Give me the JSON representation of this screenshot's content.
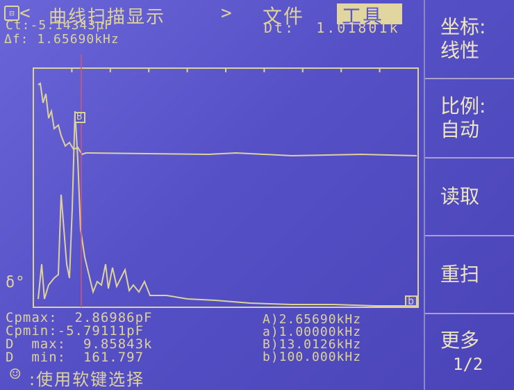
{
  "header": {
    "logo_glyph": "⊟",
    "nav_left": "<",
    "title": "曲线扫描显示",
    "nav_right": ">",
    "menu_file": "文件",
    "menu_tools": "工具"
  },
  "readouts": {
    "ct": "Ct:-5.14343μF",
    "df": "Δf: 1.65690kHz",
    "dt": "Dt:  1.01801k"
  },
  "plot": {
    "marker_a": "B",
    "marker_b": "b",
    "y_symbol": "δ°"
  },
  "stats": {
    "cpmax": "Cpmax:  2.86986pF",
    "cpmin": "Cpmin:-5.79111pF",
    "dmax": "D  max:  9.85843k",
    "dmin": "D  min:  161.797"
  },
  "freqs": {
    "A": "A)2.65690kHz",
    "a": "a)1.00000kHz",
    "B": "B)13.0126kHz",
    "b": "b)100.000kHz"
  },
  "footer": {
    "hint_icon": "☺",
    "hint": ":使用软键选择"
  },
  "softkeys": [
    {
      "line1": "坐标:",
      "line2": "线性"
    },
    {
      "line1": "比例:",
      "line2": "自动"
    },
    {
      "line1": "读取",
      "line2": ""
    },
    {
      "line1": "重扫",
      "line2": ""
    },
    {
      "line1": "更多",
      "line2": "1/2"
    }
  ]
}
